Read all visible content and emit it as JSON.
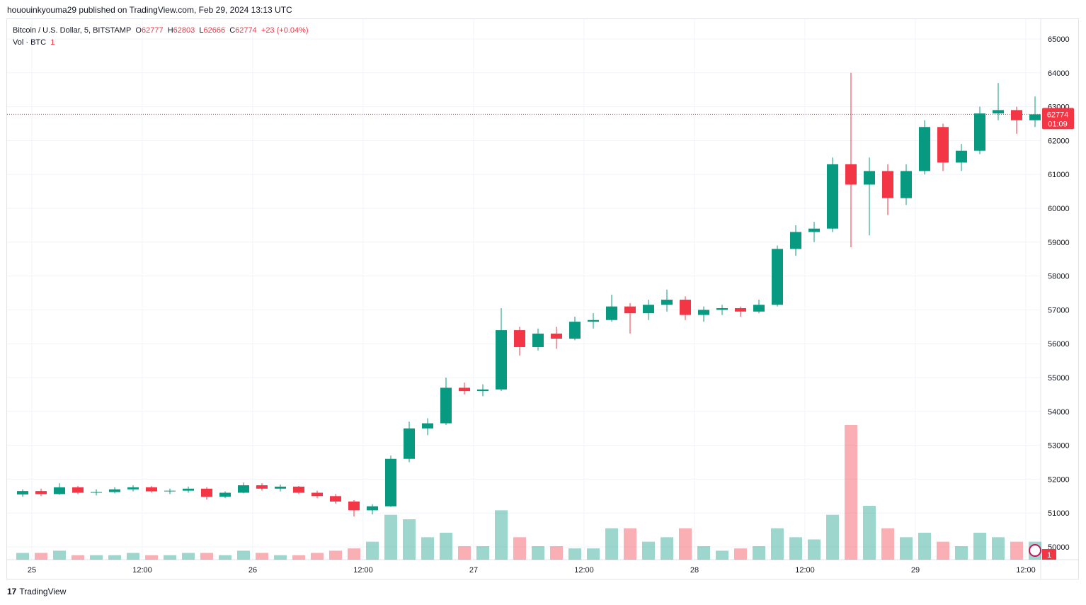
{
  "header": {
    "published": "hououinkyouma29 published on TradingView.com, Feb 29, 2024 13:13 UTC"
  },
  "legend": {
    "symbol": "Bitcoin / U.S. Dollar, 5, BITSTAMP",
    "o_label": "O",
    "o": "62777",
    "h_label": "H",
    "h": "62803",
    "l_label": "L",
    "l": "62666",
    "c_label": "C",
    "c": "62774",
    "change": "+23 (+0.04%)",
    "vol_label": "Vol · BTC",
    "vol": "1"
  },
  "last_price": {
    "price": "62774",
    "countdown": "01:09"
  },
  "event_badge": {
    "count": "1"
  },
  "footer": {
    "brand": "TradingView"
  },
  "colors": {
    "up": "#089981",
    "down": "#f23645"
  },
  "chart_data": {
    "type": "candlestick",
    "interval_note": "2-hour approximation of 5-minute candles",
    "ylim": [
      49600,
      65400
    ],
    "y_ticks": [
      65000,
      64000,
      63000,
      62000,
      61000,
      60000,
      59000,
      58000,
      57000,
      56000,
      55000,
      54000,
      53000,
      52000,
      51000,
      50000
    ],
    "x_ticks": [
      "25",
      "12:00",
      "26",
      "12:00",
      "27",
      "12:00",
      "28",
      "12:00",
      "29",
      "12:00"
    ],
    "grid": true,
    "times": [
      "24 22:00",
      "25 00:00",
      "25 02:00",
      "25 04:00",
      "25 06:00",
      "25 08:00",
      "25 10:00",
      "25 12:00",
      "25 14:00",
      "25 16:00",
      "25 18:00",
      "25 20:00",
      "25 22:00",
      "26 00:00",
      "26 02:00",
      "26 04:00",
      "26 06:00",
      "26 08:00",
      "26 10:00",
      "26 12:00",
      "26 14:00",
      "26 16:00",
      "26 18:00",
      "26 20:00",
      "26 22:00",
      "27 00:00",
      "27 02:00",
      "27 04:00",
      "27 06:00",
      "27 08:00",
      "27 10:00",
      "27 12:00",
      "27 14:00",
      "27 16:00",
      "27 18:00",
      "27 20:00",
      "27 22:00",
      "28 00:00",
      "28 02:00",
      "28 04:00",
      "28 06:00",
      "28 08:00",
      "28 10:00",
      "28 12:00",
      "28 14:00",
      "28 16:00",
      "28 18:00",
      "28 20:00",
      "28 22:00",
      "29 00:00",
      "29 02:00",
      "29 04:00",
      "29 06:00",
      "29 08:00",
      "29 10:00",
      "29 12:00"
    ],
    "ohlc": [
      [
        51550,
        51700,
        51480,
        51650
      ],
      [
        51650,
        51720,
        51500,
        51560
      ],
      [
        51560,
        51880,
        51540,
        51760
      ],
      [
        51760,
        51800,
        51560,
        51600
      ],
      [
        51600,
        51700,
        51520,
        51620
      ],
      [
        51620,
        51760,
        51580,
        51700
      ],
      [
        51700,
        51820,
        51640,
        51760
      ],
      [
        51760,
        51800,
        51600,
        51640
      ],
      [
        51640,
        51720,
        51560,
        51660
      ],
      [
        51660,
        51780,
        51600,
        51720
      ],
      [
        51720,
        51760,
        51400,
        51480
      ],
      [
        51480,
        51640,
        51440,
        51600
      ],
      [
        51600,
        51900,
        51580,
        51820
      ],
      [
        51820,
        51880,
        51660,
        51720
      ],
      [
        51720,
        51840,
        51640,
        51780
      ],
      [
        51780,
        51800,
        51560,
        51600
      ],
      [
        51600,
        51660,
        51440,
        51500
      ],
      [
        51500,
        51560,
        51280,
        51340
      ],
      [
        51340,
        51380,
        50900,
        51080
      ],
      [
        51080,
        51260,
        50960,
        51200
      ],
      [
        51200,
        52700,
        51180,
        52600
      ],
      [
        52600,
        53700,
        52500,
        53500
      ],
      [
        53500,
        53800,
        53300,
        53650
      ],
      [
        53650,
        55000,
        53600,
        54700
      ],
      [
        54700,
        54850,
        54500,
        54600
      ],
      [
        54600,
        54800,
        54450,
        54650
      ],
      [
        54650,
        57050,
        54600,
        56400
      ],
      [
        56400,
        56500,
        55650,
        55900
      ],
      [
        55900,
        56450,
        55800,
        56300
      ],
      [
        56300,
        56500,
        55850,
        56150
      ],
      [
        56150,
        56800,
        56100,
        56650
      ],
      [
        56650,
        56900,
        56450,
        56700
      ],
      [
        56700,
        57450,
        56650,
        57100
      ],
      [
        57100,
        57200,
        56300,
        56900
      ],
      [
        56900,
        57300,
        56700,
        57150
      ],
      [
        57150,
        57600,
        56950,
        57300
      ],
      [
        57300,
        57400,
        56700,
        56850
      ],
      [
        56850,
        57100,
        56650,
        57000
      ],
      [
        57000,
        57150,
        56850,
        57050
      ],
      [
        57050,
        57100,
        56800,
        56950
      ],
      [
        56950,
        57300,
        56900,
        57150
      ],
      [
        57150,
        58900,
        57100,
        58800
      ],
      [
        58800,
        59500,
        58600,
        59300
      ],
      [
        59300,
        59600,
        59000,
        59400
      ],
      [
        59400,
        61500,
        59300,
        61300
      ],
      [
        61300,
        64000,
        58850,
        60700
      ],
      [
        60700,
        61500,
        59200,
        61100
      ],
      [
        61100,
        61300,
        59800,
        60300
      ],
      [
        60300,
        61300,
        60100,
        61100
      ],
      [
        61100,
        62600,
        61000,
        62400
      ],
      [
        62400,
        62500,
        61100,
        61350
      ],
      [
        61350,
        61900,
        61100,
        61700
      ],
      [
        61700,
        63000,
        61600,
        62800
      ],
      [
        62800,
        63700,
        62600,
        62900
      ],
      [
        62900,
        63000,
        62200,
        62600
      ],
      [
        62600,
        63300,
        62400,
        62774
      ]
    ],
    "volume_relative": [
      3,
      3,
      4,
      2,
      2,
      2,
      3,
      2,
      2,
      3,
      3,
      2,
      4,
      3,
      2,
      2,
      3,
      4,
      5,
      8,
      20,
      18,
      10,
      12,
      6,
      6,
      22,
      10,
      6,
      6,
      5,
      5,
      14,
      14,
      8,
      10,
      14,
      6,
      4,
      5,
      6,
      14,
      10,
      9,
      20,
      60,
      24,
      14,
      10,
      12,
      8,
      6,
      12,
      10,
      8,
      8
    ]
  }
}
